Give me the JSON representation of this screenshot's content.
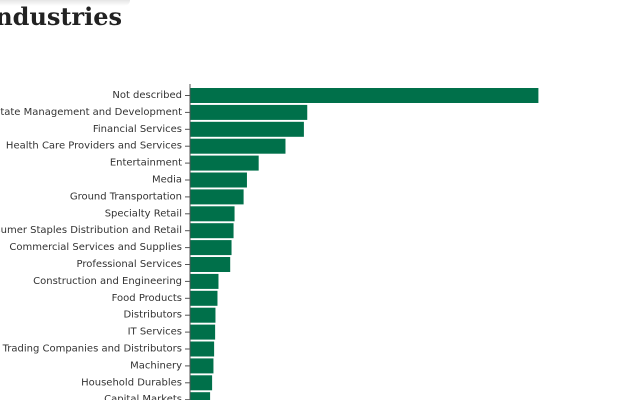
{
  "page": {
    "title": "Industries"
  },
  "colors": {
    "bar": "#00704a",
    "axis": "#555555",
    "text": "#333333"
  },
  "chart_data": {
    "type": "bar",
    "orientation": "horizontal",
    "categories": [
      "Not described",
      "Real Estate Management and Development",
      "Financial Services",
      "Health Care Providers and Services",
      "Entertainment",
      "Media",
      "Ground Transportation",
      "Specialty Retail",
      "Consumer Staples Distribution and Retail",
      "Commercial Services and Supplies",
      "Professional Services",
      "Construction and Engineering",
      "Food Products",
      "Distributors",
      "IT Services",
      "Trading Companies and Distributors",
      "Machinery",
      "Household Durables",
      "Capital Markets"
    ],
    "values": [
      104,
      35,
      34,
      28.5,
      20.5,
      17,
      16,
      13.3,
      13,
      12.4,
      12,
      8.5,
      8.2,
      7.6,
      7.5,
      7.2,
      7,
      6.6,
      6
    ],
    "title": "Industries",
    "xlabel": "",
    "ylabel": "",
    "grid": false
  }
}
